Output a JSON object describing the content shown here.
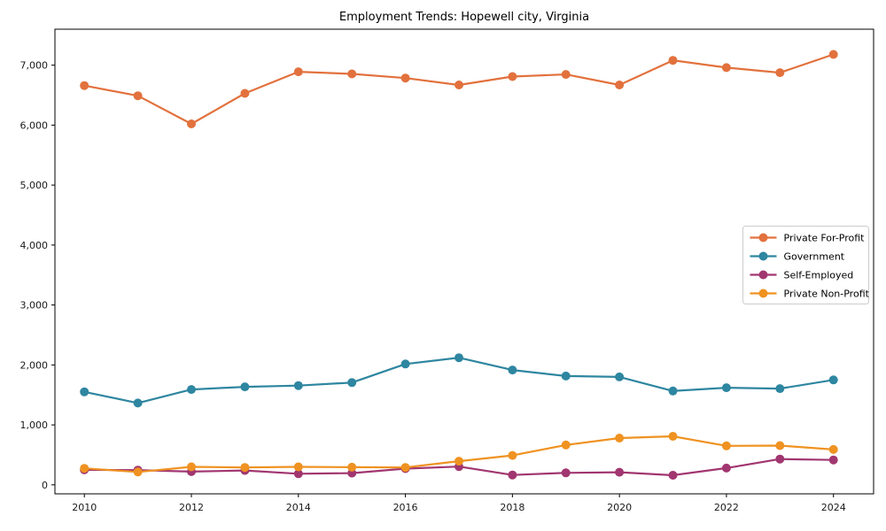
{
  "page": {
    "background": "#ffffff"
  },
  "chart_data": {
    "type": "line",
    "title": "Employment Trends: Hopewell city, Virginia",
    "xlabel": "",
    "ylabel": "",
    "grid": false,
    "legend_position": "center right",
    "marker": "circle",
    "x": [
      2010,
      2011,
      2012,
      2013,
      2014,
      2015,
      2016,
      2017,
      2018,
      2019,
      2020,
      2021,
      2022,
      2023,
      2024
    ],
    "xticks": [
      2010,
      2012,
      2014,
      2016,
      2018,
      2020,
      2022,
      2024
    ],
    "xtick_labels": [
      "2010",
      "2012",
      "2014",
      "2016",
      "2018",
      "2020",
      "2022",
      "2024"
    ],
    "yticks": [
      0,
      1000,
      2000,
      3000,
      4000,
      5000,
      6000,
      7000
    ],
    "ytick_labels": [
      "0",
      "1,000",
      "2,000",
      "3,000",
      "4,000",
      "5,000",
      "6,000",
      "7,000"
    ],
    "xlim": [
      2009.45,
      2024.75
    ],
    "ylim": [
      -150,
      7600
    ],
    "series": [
      {
        "name": "Private For-Profit",
        "color": "#E2713D",
        "values": [
          6660,
          6490,
          6020,
          6530,
          6890,
          6855,
          6785,
          6670,
          6810,
          6845,
          6670,
          7080,
          6960,
          6875,
          7180
        ]
      },
      {
        "name": "Government",
        "color": "#2E86A0",
        "values": [
          1550,
          1365,
          1590,
          1635,
          1655,
          1705,
          2015,
          2120,
          1915,
          1815,
          1800,
          1565,
          1620,
          1605,
          1750
        ]
      },
      {
        "name": "Self-Employed",
        "color": "#A13670",
        "values": [
          250,
          245,
          220,
          240,
          185,
          195,
          270,
          305,
          165,
          200,
          210,
          160,
          280,
          430,
          415
        ]
      },
      {
        "name": "Private Non-Profit",
        "color": "#EF9221",
        "values": [
          275,
          215,
          300,
          290,
          300,
          295,
          290,
          395,
          490,
          665,
          780,
          810,
          650,
          655,
          590
        ]
      }
    ],
    "axis_color": "#000000",
    "tick_label_color": "#1a1a1a",
    "legend_border_color": "#cccccc",
    "legend_background": "#ffffff"
  }
}
